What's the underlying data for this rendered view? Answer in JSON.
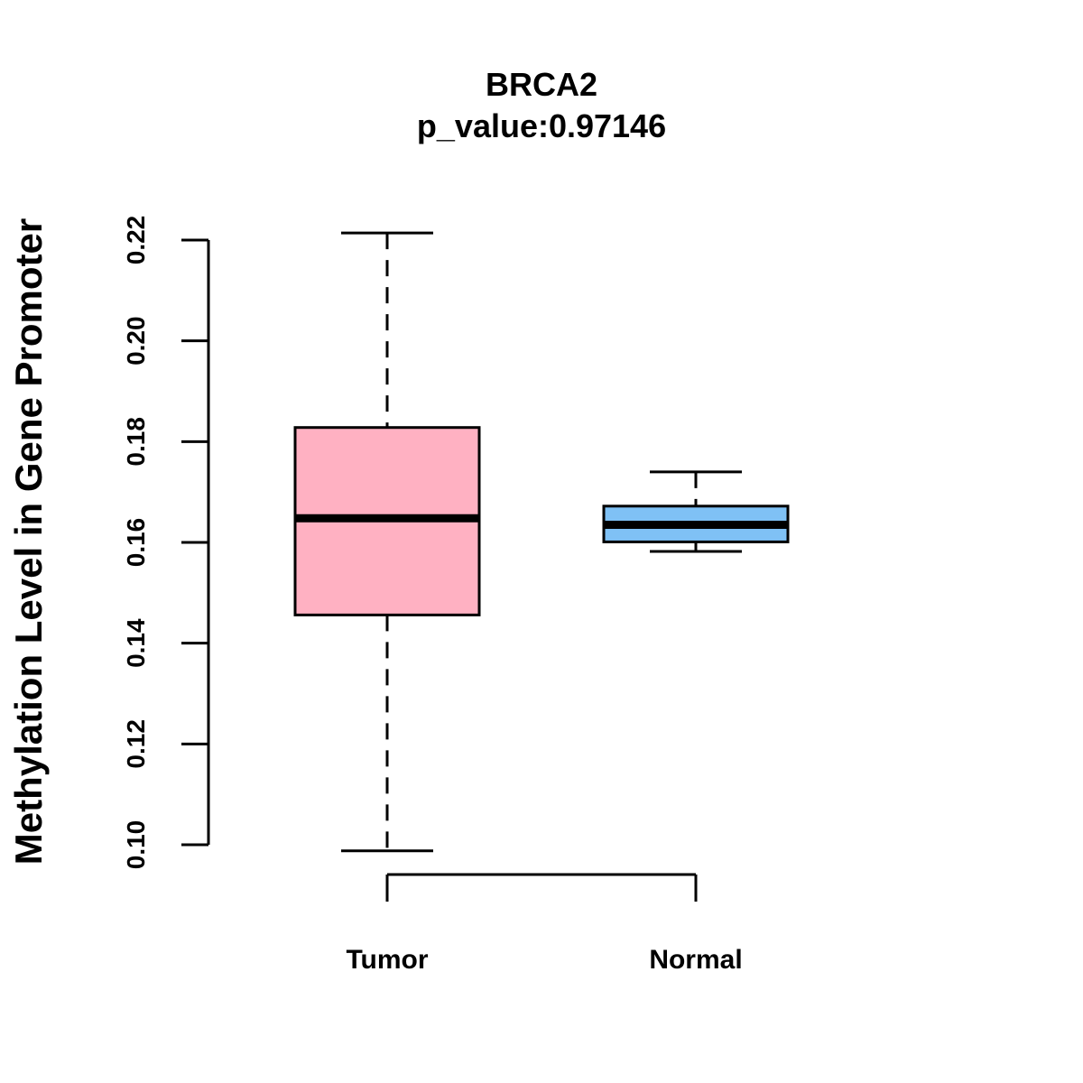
{
  "chart_data": {
    "type": "boxplot",
    "title": "BRCA2",
    "subtitle": "p_value:0.97146",
    "xlabel": "",
    "ylabel": "Methylation Level in Gene Promoter",
    "ylim": [
      0.094,
      0.224
    ],
    "yticks": [
      0.1,
      0.12,
      0.14,
      0.16,
      0.18,
      0.2,
      0.22
    ],
    "ytick_labels": [
      "0.10",
      "0.12",
      "0.14",
      "0.16",
      "0.18",
      "0.20",
      "0.22"
    ],
    "grid": false,
    "legend": "none",
    "categories": [
      "Tumor",
      "Normal"
    ],
    "series": [
      {
        "name": "Tumor",
        "min": 0.0988,
        "q1": 0.1456,
        "median": 0.1648,
        "q3": 0.1828,
        "max": 0.2214,
        "color": "#FFB1C2"
      },
      {
        "name": "Normal",
        "min": 0.1582,
        "q1": 0.1601,
        "median": 0.1635,
        "q3": 0.1672,
        "max": 0.174,
        "color": "#7FC1F5"
      }
    ]
  }
}
